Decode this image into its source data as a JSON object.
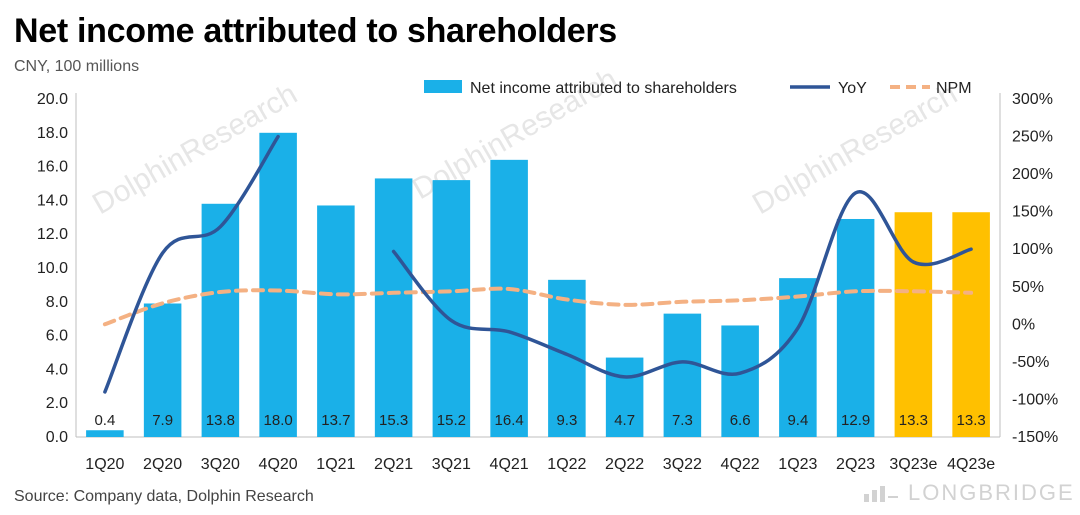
{
  "title": "Net income attributed to shareholders",
  "unit_label": "CNY, 100 millions",
  "source": "Source: Company data,  Dolphin Research",
  "watermark": "DolphinResearch",
  "brand": "LONGBRIDGE",
  "colors": {
    "bar": "#1ab0e8",
    "bar_estimate": "#ffc000",
    "yoy": "#2f5597",
    "npm": "#f4b183",
    "axis": "#bfbfbf"
  },
  "chart_data": {
    "type": "bar",
    "categories": [
      "1Q20",
      "2Q20",
      "3Q20",
      "4Q20",
      "1Q21",
      "2Q21",
      "3Q21",
      "4Q21",
      "1Q22",
      "2Q22",
      "3Q22",
      "4Q22",
      "1Q23",
      "2Q23",
      "3Q23e",
      "4Q23e"
    ],
    "left_axis": {
      "ylim": [
        0,
        20
      ],
      "step": 2,
      "ticks": [
        "0.0",
        "2.0",
        "4.0",
        "6.0",
        "8.0",
        "10.0",
        "12.0",
        "14.0",
        "16.0",
        "18.0",
        "20.0"
      ]
    },
    "right_axis": {
      "ylim": [
        -150,
        300
      ],
      "step": 50,
      "ticks": [
        "-150%",
        "-100%",
        "-50%",
        "0%",
        "50%",
        "100%",
        "150%",
        "200%",
        "250%",
        "300%"
      ]
    },
    "legend": {
      "position": "top",
      "items": [
        "Net income attributed to shareholders",
        "YoY",
        "NPM"
      ]
    },
    "series": [
      {
        "name": "Net income attributed to shareholders",
        "kind": "bar",
        "axis": "left",
        "values": [
          0.4,
          7.9,
          13.8,
          18.0,
          13.7,
          15.3,
          15.2,
          16.4,
          9.3,
          4.7,
          7.3,
          6.6,
          9.4,
          12.9,
          13.3,
          13.3
        ],
        "labels": [
          "0.4",
          "7.9",
          "13.8",
          "18.0",
          "13.7",
          "15.3",
          "15.2",
          "16.4",
          "9.3",
          "4.7",
          "7.3",
          "6.6",
          "9.4",
          "12.9",
          "13.3",
          "13.3"
        ],
        "estimate": [
          false,
          false,
          false,
          false,
          false,
          false,
          false,
          false,
          false,
          false,
          false,
          false,
          false,
          false,
          true,
          true
        ]
      },
      {
        "name": "YoY",
        "kind": "line",
        "axis": "right",
        "segments": [
          [
            [
              0,
              -90
            ],
            [
              1,
              95
            ],
            [
              2,
              130
            ],
            [
              3,
              250
            ]
          ],
          [
            [
              5,
              97
            ],
            [
              6,
              5
            ],
            [
              7,
              -10
            ],
            [
              8,
              -40
            ],
            [
              9,
              -70
            ],
            [
              10,
              -50
            ],
            [
              11,
              -65
            ],
            [
              12,
              -5
            ],
            [
              13,
              175
            ],
            [
              14,
              83
            ],
            [
              15,
              100
            ]
          ]
        ]
      },
      {
        "name": "NPM",
        "kind": "dashed-line",
        "axis": "right",
        "values": [
          0,
          28,
          43,
          45,
          40,
          42,
          44,
          47,
          33,
          26,
          30,
          32,
          37,
          44,
          44,
          42
        ]
      }
    ]
  }
}
